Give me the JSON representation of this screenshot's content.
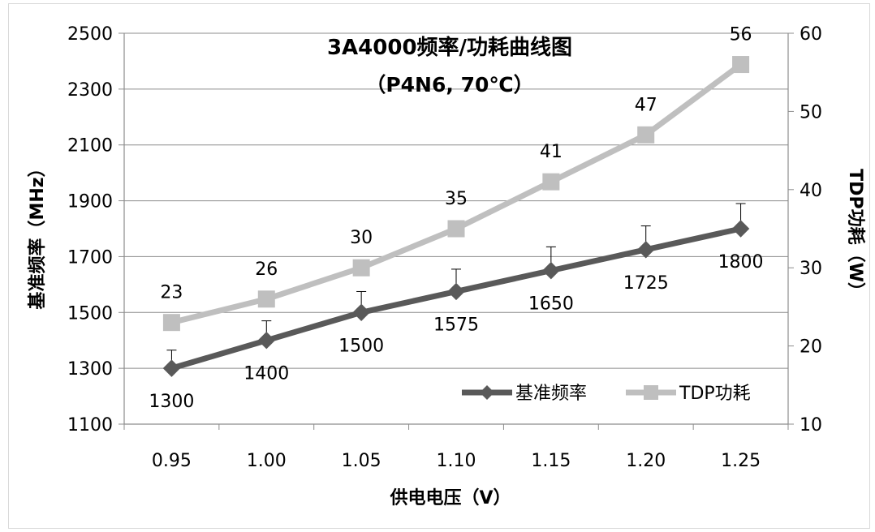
{
  "chart_data": {
    "type": "line",
    "title": "3A4000频率/功耗曲线图",
    "subtitle": "（P4N6, 70℃）",
    "xlabel": "供电电压（V）",
    "ylabel_left": "基准频率（MHz）",
    "ylabel_right": "TDP功耗（W）",
    "categories": [
      "0.95",
      "1.00",
      "1.05",
      "1.10",
      "1.15",
      "1.20",
      "1.25"
    ],
    "ylim_left": [
      1100,
      2500
    ],
    "yticks_left": [
      "1100",
      "1300",
      "1500",
      "1700",
      "1900",
      "2100",
      "2300",
      "2500"
    ],
    "ylim_right": [
      10,
      60
    ],
    "yticks_right": [
      "10",
      "20",
      "30",
      "40",
      "50",
      "60"
    ],
    "grid": true,
    "legend_position": "bottom-right",
    "series": [
      {
        "name": "基准频率",
        "axis": "left",
        "color": "#595959",
        "marker": "diamond",
        "values": [
          1300,
          1400,
          1500,
          1575,
          1650,
          1725,
          1800
        ],
        "labels": [
          "1300",
          "1400",
          "1500",
          "1575",
          "1650",
          "1725",
          "1800"
        ],
        "error_plus": [
          65,
          70,
          75,
          80,
          85,
          85,
          90
        ]
      },
      {
        "name": "TDP功耗",
        "axis": "right",
        "color": "#bfbfbf",
        "marker": "square",
        "values": [
          23,
          26,
          30,
          35,
          41,
          47,
          56
        ],
        "labels": [
          "23",
          "26",
          "30",
          "35",
          "41",
          "47",
          "56"
        ]
      }
    ]
  }
}
